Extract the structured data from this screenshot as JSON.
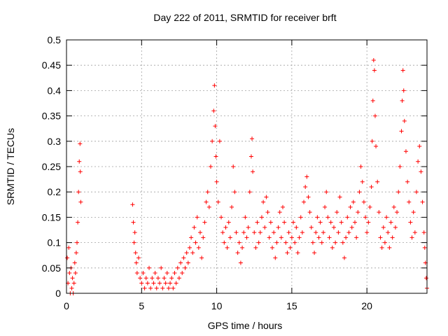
{
  "chart_data": {
    "type": "scatter",
    "title": "Day 222 of 2011, SRMTID for receiver brft",
    "xlabel": "GPS time / hours",
    "ylabel": "SRMTID / TECUs",
    "xlim": [
      0,
      24
    ],
    "ylim": [
      0,
      0.5
    ],
    "x_ticks": [
      "0",
      "5",
      "10",
      "15",
      "20"
    ],
    "x_tick_values": [
      0,
      5,
      10,
      15,
      20
    ],
    "y_ticks": [
      "0",
      "0.05",
      "0.1",
      "0.15",
      "0.2",
      "0.25",
      "0.3",
      "0.35",
      "0.4",
      "0.45",
      "0.5"
    ],
    "y_tick_values": [
      0,
      0.05,
      0.1,
      0.15,
      0.2,
      0.25,
      0.3,
      0.35,
      0.4,
      0.45,
      0.5
    ],
    "grid": true,
    "marker": "plus",
    "color": "#ff0000",
    "series": [
      {
        "name": "SRMTID",
        "points": [
          [
            0.05,
            0.07
          ],
          [
            0.1,
            0.02
          ],
          [
            0.15,
            0.09
          ],
          [
            0.2,
            0.04
          ],
          [
            0.25,
            0.0
          ],
          [
            0.3,
            0.05
          ],
          [
            0.35,
            0.01
          ],
          [
            0.4,
            0.03
          ],
          [
            0.45,
            0.0
          ],
          [
            0.5,
            0.02
          ],
          [
            0.55,
            0.06
          ],
          [
            0.6,
            0.04
          ],
          [
            0.65,
            0.08
          ],
          [
            0.7,
            0.1
          ],
          [
            0.75,
            0.14
          ],
          [
            0.8,
            0.2
          ],
          [
            0.85,
            0.26
          ],
          [
            0.9,
            0.295
          ],
          [
            0.92,
            0.24
          ],
          [
            0.95,
            0.18
          ],
          [
            4.4,
            0.175
          ],
          [
            4.45,
            0.14
          ],
          [
            4.5,
            0.1
          ],
          [
            4.55,
            0.12
          ],
          [
            4.6,
            0.08
          ],
          [
            4.65,
            0.06
          ],
          [
            4.7,
            0.04
          ],
          [
            4.8,
            0.07
          ],
          [
            4.9,
            0.03
          ],
          [
            5.0,
            0.02
          ],
          [
            5.1,
            0.04
          ],
          [
            5.2,
            0.01
          ],
          [
            5.3,
            0.03
          ],
          [
            5.4,
            0.02
          ],
          [
            5.5,
            0.05
          ],
          [
            5.6,
            0.01
          ],
          [
            5.7,
            0.03
          ],
          [
            5.8,
            0.02
          ],
          [
            5.9,
            0.04
          ],
          [
            6.0,
            0.01
          ],
          [
            6.1,
            0.03
          ],
          [
            6.2,
            0.02
          ],
          [
            6.3,
            0.05
          ],
          [
            6.4,
            0.01
          ],
          [
            6.5,
            0.03
          ],
          [
            6.6,
            0.02
          ],
          [
            6.7,
            0.04
          ],
          [
            6.8,
            0.01
          ],
          [
            6.9,
            0.02
          ],
          [
            7.0,
            0.03
          ],
          [
            7.1,
            0.01
          ],
          [
            7.2,
            0.04
          ],
          [
            7.3,
            0.02
          ],
          [
            7.4,
            0.05
          ],
          [
            7.5,
            0.03
          ],
          [
            7.6,
            0.06
          ],
          [
            7.7,
            0.04
          ],
          [
            7.8,
            0.07
          ],
          [
            7.9,
            0.05
          ],
          [
            8.0,
            0.08
          ],
          [
            8.1,
            0.06
          ],
          [
            8.2,
            0.09
          ],
          [
            8.3,
            0.11
          ],
          [
            8.4,
            0.08
          ],
          [
            8.5,
            0.13
          ],
          [
            8.6,
            0.1
          ],
          [
            8.7,
            0.15
          ],
          [
            8.8,
            0.09
          ],
          [
            8.9,
            0.12
          ],
          [
            9.0,
            0.07
          ],
          [
            9.1,
            0.11
          ],
          [
            9.2,
            0.14
          ],
          [
            9.3,
            0.18
          ],
          [
            9.4,
            0.2
          ],
          [
            9.5,
            0.17
          ],
          [
            9.6,
            0.25
          ],
          [
            9.7,
            0.3
          ],
          [
            9.8,
            0.36
          ],
          [
            9.85,
            0.41
          ],
          [
            9.9,
            0.33
          ],
          [
            9.95,
            0.27
          ],
          [
            10.0,
            0.22
          ],
          [
            10.1,
            0.18
          ],
          [
            10.2,
            0.3
          ],
          [
            10.3,
            0.15
          ],
          [
            10.4,
            0.12
          ],
          [
            10.5,
            0.1
          ],
          [
            10.6,
            0.13
          ],
          [
            10.7,
            0.09
          ],
          [
            10.8,
            0.14
          ],
          [
            10.9,
            0.11
          ],
          [
            11.0,
            0.17
          ],
          [
            11.1,
            0.25
          ],
          [
            11.2,
            0.2
          ],
          [
            11.3,
            0.12
          ],
          [
            11.4,
            0.08
          ],
          [
            11.5,
            0.1
          ],
          [
            11.6,
            0.06
          ],
          [
            11.7,
            0.09
          ],
          [
            11.8,
            0.12
          ],
          [
            11.9,
            0.15
          ],
          [
            12.0,
            0.11
          ],
          [
            12.1,
            0.13
          ],
          [
            12.2,
            0.2
          ],
          [
            12.3,
            0.27
          ],
          [
            12.35,
            0.305
          ],
          [
            12.4,
            0.24
          ],
          [
            12.5,
            0.12
          ],
          [
            12.6,
            0.09
          ],
          [
            12.7,
            0.14
          ],
          [
            12.8,
            0.1
          ],
          [
            12.9,
            0.12
          ],
          [
            13.0,
            0.15
          ],
          [
            13.1,
            0.18
          ],
          [
            13.2,
            0.13
          ],
          [
            13.3,
            0.19
          ],
          [
            13.4,
            0.16
          ],
          [
            13.5,
            0.11
          ],
          [
            13.6,
            0.14
          ],
          [
            13.7,
            0.09
          ],
          [
            13.8,
            0.12
          ],
          [
            13.9,
            0.07
          ],
          [
            14.0,
            0.1
          ],
          [
            14.1,
            0.13
          ],
          [
            14.2,
            0.16
          ],
          [
            14.3,
            0.11
          ],
          [
            14.4,
            0.17
          ],
          [
            14.5,
            0.14
          ],
          [
            14.6,
            0.1
          ],
          [
            14.7,
            0.08
          ],
          [
            14.8,
            0.12
          ],
          [
            14.9,
            0.09
          ],
          [
            15.0,
            0.11
          ],
          [
            15.1,
            0.14
          ],
          [
            15.2,
            0.1
          ],
          [
            15.3,
            0.13
          ],
          [
            15.4,
            0.08
          ],
          [
            15.5,
            0.11
          ],
          [
            15.6,
            0.15
          ],
          [
            15.7,
            0.12
          ],
          [
            15.8,
            0.18
          ],
          [
            15.9,
            0.21
          ],
          [
            16.0,
            0.23
          ],
          [
            16.1,
            0.19
          ],
          [
            16.2,
            0.16
          ],
          [
            16.3,
            0.13
          ],
          [
            16.4,
            0.1
          ],
          [
            16.5,
            0.08
          ],
          [
            16.6,
            0.12
          ],
          [
            16.7,
            0.15
          ],
          [
            16.8,
            0.11
          ],
          [
            16.9,
            0.14
          ],
          [
            17.0,
            0.1
          ],
          [
            17.1,
            0.12
          ],
          [
            17.2,
            0.17
          ],
          [
            17.3,
            0.2
          ],
          [
            17.4,
            0.15
          ],
          [
            17.5,
            0.11
          ],
          [
            17.6,
            0.14
          ],
          [
            17.7,
            0.09
          ],
          [
            17.8,
            0.13
          ],
          [
            17.9,
            0.1
          ],
          [
            18.0,
            0.16
          ],
          [
            18.1,
            0.12
          ],
          [
            18.2,
            0.19
          ],
          [
            18.3,
            0.14
          ],
          [
            18.4,
            0.1
          ],
          [
            18.5,
            0.07
          ],
          [
            18.6,
            0.11
          ],
          [
            18.7,
            0.15
          ],
          [
            18.8,
            0.12
          ],
          [
            18.9,
            0.17
          ],
          [
            19.0,
            0.13
          ],
          [
            19.1,
            0.18
          ],
          [
            19.2,
            0.14
          ],
          [
            19.3,
            0.11
          ],
          [
            19.4,
            0.16
          ],
          [
            19.5,
            0.2
          ],
          [
            19.6,
            0.25
          ],
          [
            19.7,
            0.22
          ],
          [
            19.8,
            0.18
          ],
          [
            19.9,
            0.15
          ],
          [
            20.0,
            0.12
          ],
          [
            20.1,
            0.14
          ],
          [
            20.2,
            0.17
          ],
          [
            20.3,
            0.21
          ],
          [
            20.35,
            0.3
          ],
          [
            20.4,
            0.38
          ],
          [
            20.45,
            0.46
          ],
          [
            20.5,
            0.44
          ],
          [
            20.55,
            0.35
          ],
          [
            20.6,
            0.29
          ],
          [
            20.7,
            0.22
          ],
          [
            20.8,
            0.16
          ],
          [
            20.9,
            0.11
          ],
          [
            21.0,
            0.09
          ],
          [
            21.1,
            0.13
          ],
          [
            21.2,
            0.1
          ],
          [
            21.3,
            0.15
          ],
          [
            21.4,
            0.12
          ],
          [
            21.5,
            0.09
          ],
          [
            21.6,
            0.14
          ],
          [
            21.7,
            0.11
          ],
          [
            21.8,
            0.17
          ],
          [
            21.9,
            0.13
          ],
          [
            22.0,
            0.16
          ],
          [
            22.1,
            0.2
          ],
          [
            22.2,
            0.25
          ],
          [
            22.3,
            0.32
          ],
          [
            22.35,
            0.38
          ],
          [
            22.4,
            0.44
          ],
          [
            22.45,
            0.4
          ],
          [
            22.5,
            0.34
          ],
          [
            22.6,
            0.28
          ],
          [
            22.7,
            0.22
          ],
          [
            22.8,
            0.18
          ],
          [
            22.9,
            0.14
          ],
          [
            23.0,
            0.11
          ],
          [
            23.1,
            0.16
          ],
          [
            23.2,
            0.12
          ],
          [
            23.3,
            0.2
          ],
          [
            23.4,
            0.26
          ],
          [
            23.5,
            0.29
          ],
          [
            23.6,
            0.24
          ],
          [
            23.7,
            0.18
          ],
          [
            23.8,
            0.12
          ],
          [
            23.9,
            0.06
          ],
          [
            23.95,
            0.03
          ],
          [
            24.0,
            0.01
          ],
          [
            23.85,
            0.09
          ]
        ]
      }
    ]
  }
}
